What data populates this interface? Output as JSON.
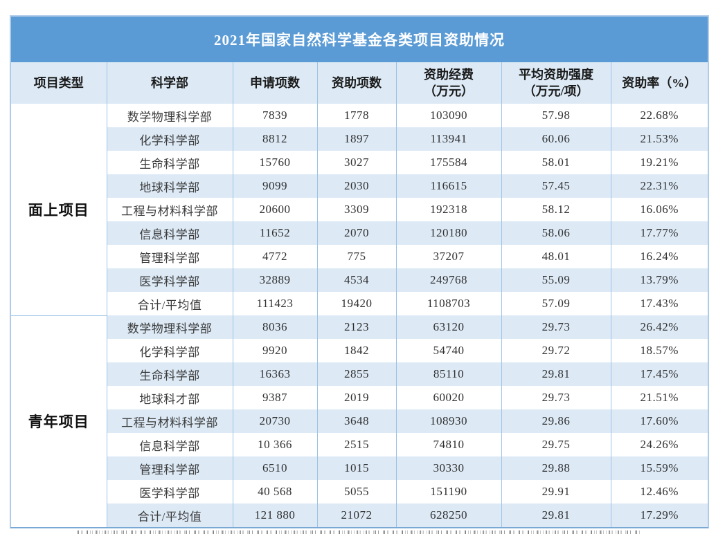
{
  "table": {
    "title": "2021年国家自然科学基金各类项目资助情况",
    "columns": [
      {
        "lines": [
          "项目类型"
        ]
      },
      {
        "lines": [
          "科学部"
        ]
      },
      {
        "lines": [
          "申请项数"
        ]
      },
      {
        "lines": [
          "资助项数"
        ]
      },
      {
        "lines": [
          "资助经费",
          "（万元）"
        ]
      },
      {
        "lines": [
          "平均资助强度",
          "（万元/项）"
        ]
      },
      {
        "lines": [
          "资助率（%）"
        ]
      }
    ],
    "groups": [
      {
        "type": "面上项目",
        "rows": [
          [
            "数学物理科学部",
            "7839",
            "1778",
            "103090",
            "57.98",
            "22.68%"
          ],
          [
            "化学科学部",
            "8812",
            "1897",
            "113941",
            "60.06",
            "21.53%"
          ],
          [
            "生命科学部",
            "15760",
            "3027",
            "175584",
            "58.01",
            "19.21%"
          ],
          [
            "地球科学部",
            "9099",
            "2030",
            "116615",
            "57.45",
            "22.31%"
          ],
          [
            "工程与材料科学部",
            "20600",
            "3309",
            "192318",
            "58.12",
            "16.06%"
          ],
          [
            "信息科学部",
            "11652",
            "2070",
            "120180",
            "58.06",
            "17.77%"
          ],
          [
            "管理科学部",
            "4772",
            "775",
            "37207",
            "48.01",
            "16.24%"
          ],
          [
            "医学科学部",
            "32889",
            "4534",
            "249768",
            "55.09",
            "13.79%"
          ],
          [
            "合计/平均值",
            "111423",
            "19420",
            "1108703",
            "57.09",
            "17.43%"
          ]
        ]
      },
      {
        "type": "青年项目",
        "rows": [
          [
            "数学物理科学部",
            "8036",
            "2123",
            "63120",
            "29.73",
            "26.42%"
          ],
          [
            "化学科学部",
            "9920",
            "1842",
            "54740",
            "29.72",
            "18.57%"
          ],
          [
            "生命科学部",
            "16363",
            "2855",
            "85110",
            "29.81",
            "17.45%"
          ],
          [
            "地球科才部",
            "9387",
            "2019",
            "60020",
            "29.73",
            "21.51%"
          ],
          [
            "工程与材料科学部",
            "20730",
            "3648",
            "108930",
            "29.86",
            "17.60%"
          ],
          [
            "信息科学部",
            "10 366",
            "2515",
            "74810",
            "29.75",
            "24.26%"
          ],
          [
            "管理科学部",
            "6510",
            "1015",
            "30330",
            "29.88",
            "15.59%"
          ],
          [
            "医学科学部",
            "40 568",
            "5055",
            "151190",
            "29.91",
            "12.46%"
          ],
          [
            "合计/平均值",
            "121 880",
            "21072",
            "628250",
            "29.81",
            "17.29%"
          ]
        ]
      }
    ],
    "colors": {
      "title_bg": "#5B9BD5",
      "title_text": "#FFFFFF",
      "header_bg": "#DDEAF6",
      "band_bg": "#DDEAF6",
      "border": "#9CC2E5",
      "border_outer": "#AECBE8",
      "border_bottom": "#79A8D4"
    }
  }
}
